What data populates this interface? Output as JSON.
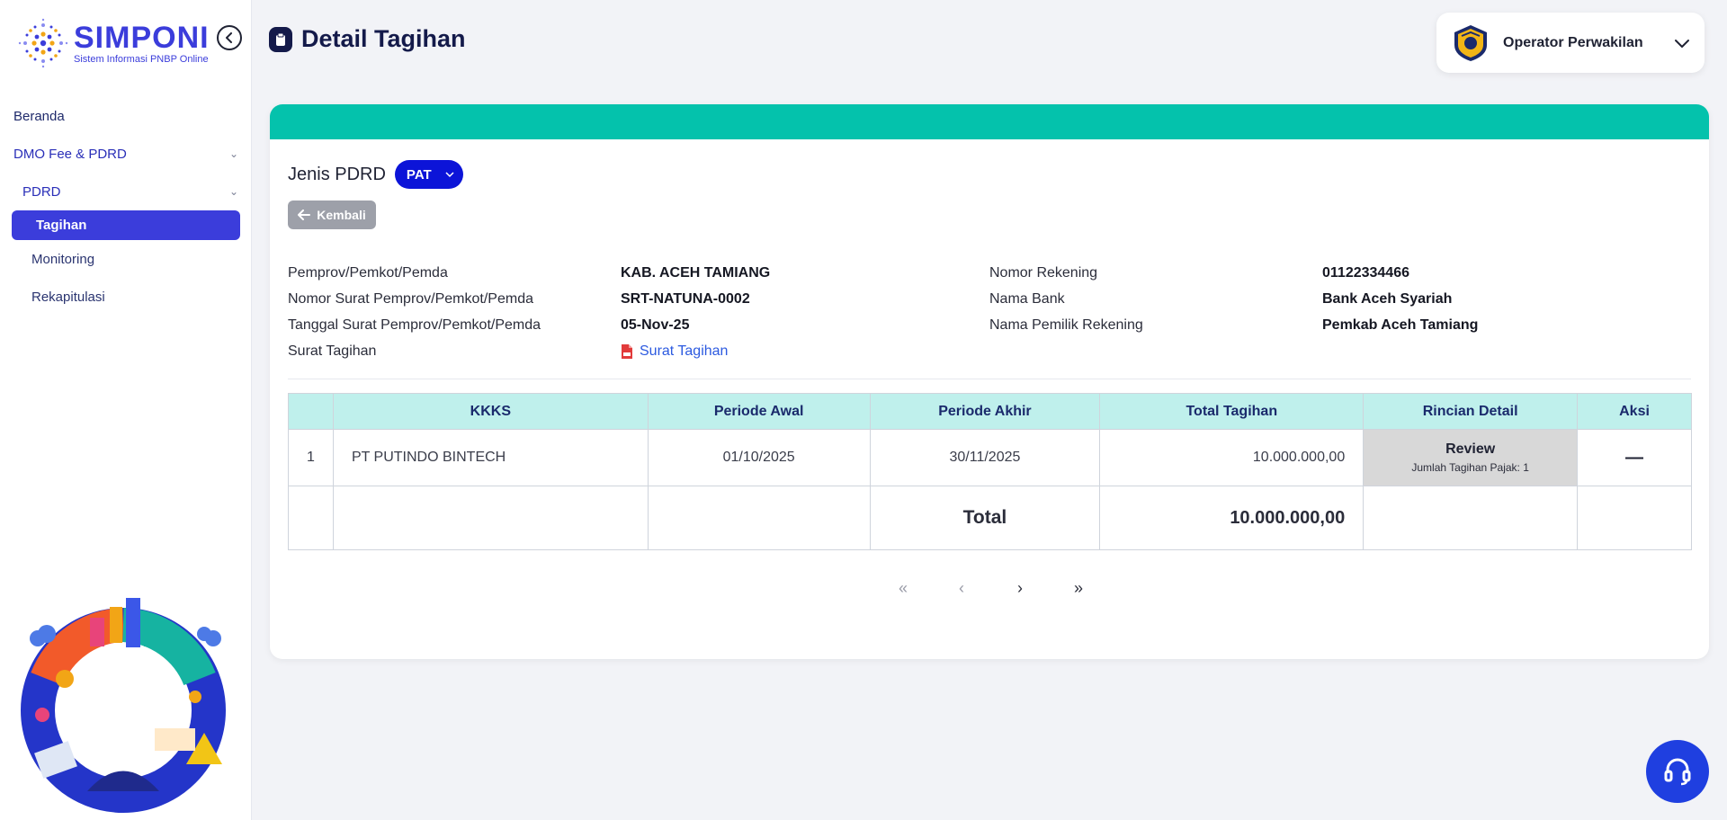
{
  "brand": {
    "name": "SIMPONI",
    "tagline": "Sistem Informasi PNBP Online"
  },
  "sidebar": {
    "items": [
      {
        "label": "Beranda",
        "chevron": false
      },
      {
        "label": "DMO Fee & PDRD",
        "chevron": true
      },
      {
        "label": "PDRD",
        "chevron": true
      },
      {
        "label": "Tagihan",
        "active": true
      },
      {
        "label": "Monitoring"
      },
      {
        "label": "Rekapitulasi"
      }
    ]
  },
  "header": {
    "title": "Detail Tagihan",
    "user": "Operator Perwakilan"
  },
  "card": {
    "jenis_label": "Jenis PDRD",
    "jenis_value": "PAT",
    "back_label": "Kembali",
    "info_left": [
      {
        "label": "Pemprov/Pemkot/Pemda",
        "value": "KAB. ACEH TAMIANG"
      },
      {
        "label": "Nomor Surat Pemprov/Pemkot/Pemda",
        "value": "SRT-NATUNA-0002"
      },
      {
        "label": "Tanggal Surat Pemprov/Pemkot/Pemda",
        "value": "05-Nov-25"
      },
      {
        "label": "Surat Tagihan",
        "value": "Surat Tagihan"
      }
    ],
    "info_right": [
      {
        "label": "Nomor Rekening",
        "value": "01122334466"
      },
      {
        "label": "Nama Bank",
        "value": "Bank Aceh Syariah"
      },
      {
        "label": "Nama Pemilik Rekening",
        "value": "Pemkab Aceh Tamiang"
      }
    ]
  },
  "table": {
    "headers": [
      "",
      "KKKS",
      "Periode Awal",
      "Periode Akhir",
      "Total Tagihan",
      "Rincian Detail",
      "Aksi"
    ],
    "rows": [
      {
        "no": "1",
        "kkks": "PT PUTINDO BINTECH",
        "periode_awal": "01/10/2025",
        "periode_akhir": "30/11/2025",
        "total": "10.000.000,00",
        "review_label": "Review",
        "review_sub": "Jumlah Tagihan Pajak: 1",
        "aksi": "—"
      }
    ],
    "total_label": "Total",
    "total_value": "10.000.000,00"
  },
  "pager": {
    "first": "«",
    "prev": "‹",
    "next": "›",
    "last": "»"
  },
  "icons": {
    "collapse": "chevron-left-icon",
    "title": "clipboard-icon",
    "help": "headset-icon"
  },
  "colors": {
    "primary": "#3b3ddb",
    "band": "#04c2ac",
    "table_header": "#bff0ec",
    "select": "#0c14d8"
  }
}
